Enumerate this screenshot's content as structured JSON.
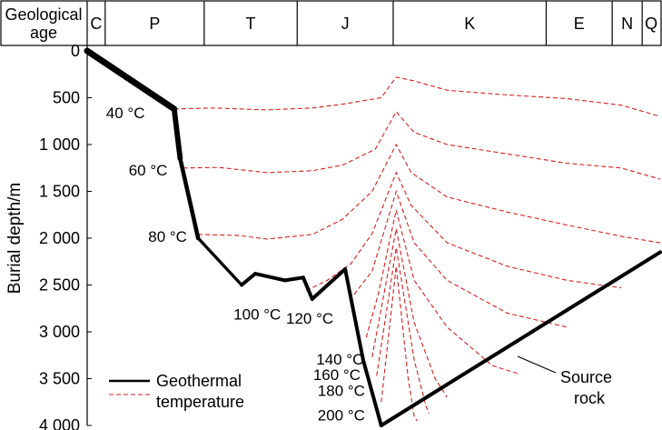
{
  "header": {
    "label_line1": "Geological",
    "label_line2": "age",
    "periods": [
      {
        "name": "C",
        "start": 0,
        "end": 0.6
      },
      {
        "name": "P",
        "start": 0.6,
        "end": 3.9
      },
      {
        "name": "T",
        "start": 3.9,
        "end": 7.0
      },
      {
        "name": "J",
        "start": 7.0,
        "end": 10.2
      },
      {
        "name": "K",
        "start": 10.2,
        "end": 15.3
      },
      {
        "name": "E",
        "start": 15.3,
        "end": 17.5
      },
      {
        "name": "N",
        "start": 17.5,
        "end": 18.5
      },
      {
        "name": "Q",
        "start": 18.5,
        "end": 19.1
      }
    ]
  },
  "chart_data": {
    "type": "line",
    "ylabel": "Burial depth/m",
    "y_ticks": [
      {
        "value": 0,
        "label": "0"
      },
      {
        "value": 500,
        "label": "500"
      },
      {
        "value": 1000,
        "label": "1 000"
      },
      {
        "value": 1500,
        "label": "1 500"
      },
      {
        "value": 2000,
        "label": "2 000"
      },
      {
        "value": 2500,
        "label": "2 500"
      },
      {
        "value": 3000,
        "label": "3 000"
      },
      {
        "value": 3500,
        "label": "3 500"
      },
      {
        "value": 4000,
        "label": "4 000"
      }
    ],
    "ylim": [
      0,
      4000
    ],
    "y_inverted": true,
    "colors": {
      "burial": "#000000",
      "isotherm": "#d62020"
    },
    "source_rock_burial": {
      "name": "Source rock",
      "points": [
        [
          0,
          0
        ],
        [
          2.9,
          620
        ],
        [
          3.1,
          1150
        ],
        [
          3.7,
          2000
        ],
        [
          5.15,
          2500
        ],
        [
          5.6,
          2380
        ],
        [
          6.6,
          2450
        ],
        [
          7.2,
          2420
        ],
        [
          7.5,
          2650
        ],
        [
          8.6,
          2330
        ],
        [
          9.2,
          3300
        ],
        [
          9.8,
          4000
        ],
        [
          19.1,
          2150
        ]
      ]
    },
    "isotherms": [
      {
        "label": "40 °C",
        "points": [
          [
            2.9,
            620
          ],
          [
            4.2,
            610
          ],
          [
            6.0,
            630
          ],
          [
            7.5,
            610
          ],
          [
            8.5,
            570
          ],
          [
            9.8,
            500
          ],
          [
            10.3,
            280
          ],
          [
            10.9,
            320
          ],
          [
            12.0,
            420
          ],
          [
            14.0,
            470
          ],
          [
            16.0,
            510
          ],
          [
            17.8,
            580
          ],
          [
            19.1,
            700
          ]
        ]
      },
      {
        "label": "60 °C",
        "points": [
          [
            3.2,
            1250
          ],
          [
            4.4,
            1245
          ],
          [
            6.0,
            1300
          ],
          [
            7.5,
            1280
          ],
          [
            8.5,
            1220
          ],
          [
            9.6,
            1050
          ],
          [
            10.3,
            650
          ],
          [
            10.9,
            870
          ],
          [
            12.0,
            1000
          ],
          [
            14.0,
            1100
          ],
          [
            16.0,
            1200
          ],
          [
            17.8,
            1250
          ],
          [
            19.1,
            1370
          ]
        ]
      },
      {
        "label": "80 °C",
        "points": [
          [
            3.7,
            1960
          ],
          [
            5.0,
            1970
          ],
          [
            6.0,
            2010
          ],
          [
            7.5,
            1960
          ],
          [
            8.5,
            1800
          ],
          [
            9.5,
            1500
          ],
          [
            10.3,
            1000
          ],
          [
            10.8,
            1300
          ],
          [
            12.0,
            1560
          ],
          [
            14.0,
            1720
          ],
          [
            16.0,
            1860
          ],
          [
            17.8,
            1980
          ],
          [
            19.1,
            2050
          ]
        ]
      },
      {
        "label": "100 °C",
        "points": [
          [
            7.3,
            2560
          ],
          [
            8.0,
            2450
          ],
          [
            8.8,
            2270
          ],
          [
            9.5,
            1950
          ],
          [
            10.3,
            1300
          ],
          [
            10.8,
            1650
          ],
          [
            12.0,
            2050
          ],
          [
            14.0,
            2300
          ],
          [
            16.0,
            2450
          ],
          [
            17.8,
            2530
          ]
        ]
      },
      {
        "label": "120 °C",
        "points": [
          [
            8.9,
            2600
          ],
          [
            9.5,
            2350
          ],
          [
            10.3,
            1500
          ],
          [
            10.9,
            2050
          ],
          [
            12.0,
            2450
          ],
          [
            14.0,
            2800
          ],
          [
            16.0,
            2950
          ]
        ]
      },
      {
        "label": "140 °C",
        "points": [
          [
            9.3,
            3060
          ],
          [
            9.7,
            2600
          ],
          [
            10.3,
            1700
          ],
          [
            10.9,
            2450
          ],
          [
            12.0,
            2950
          ],
          [
            13.5,
            3360
          ],
          [
            14.4,
            3450
          ]
        ]
      },
      {
        "label": "160 °C",
        "points": [
          [
            9.5,
            3270
          ],
          [
            10.3,
            1900
          ],
          [
            10.9,
            2900
          ],
          [
            11.6,
            3500
          ],
          [
            12.0,
            3700
          ]
        ]
      },
      {
        "label": "180 °C",
        "points": [
          [
            9.65,
            3470
          ],
          [
            10.3,
            2100
          ],
          [
            10.9,
            3300
          ],
          [
            11.3,
            3800
          ],
          [
            11.4,
            3870
          ]
        ]
      },
      {
        "label": "200 °C",
        "points": [
          [
            9.8,
            3750
          ],
          [
            10.3,
            2300
          ],
          [
            10.7,
            3500
          ],
          [
            10.9,
            3900
          ],
          [
            11.0,
            3950
          ]
        ]
      }
    ]
  },
  "legend": {
    "line1": "Geothermal",
    "line2": "temperature"
  },
  "annotation": {
    "line1": "Source",
    "line2": "rock"
  }
}
